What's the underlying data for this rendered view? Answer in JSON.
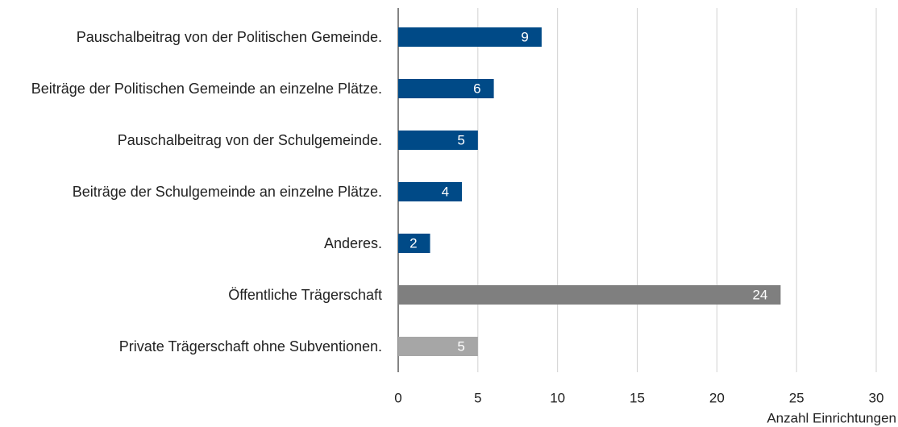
{
  "chart_data": {
    "type": "barh",
    "categories": [
      "Pauschalbeitrag von der Politischen Gemeinde.",
      "Beiträge der Politischen Gemeinde an einzelne Plätze.",
      "Pauschalbeitrag von der Schulgemeinde.",
      "Beiträge der Schulgemeinde an einzelne Plätze.",
      "Anderes.",
      "Öffentliche Trägerschaft",
      "Private Trägerschaft ohne Subventionen."
    ],
    "values": [
      9,
      6,
      5,
      4,
      2,
      24,
      5
    ],
    "colors": [
      "#004a87",
      "#004a87",
      "#004a87",
      "#004a87",
      "#004a87",
      "#7f7f7f",
      "#a6a6a6"
    ],
    "xlabel": "Anzahl Einrichtungen",
    "xlim": [
      0,
      30
    ],
    "xticks": [
      0,
      5,
      10,
      15,
      20,
      25,
      30
    ],
    "grid": true
  }
}
